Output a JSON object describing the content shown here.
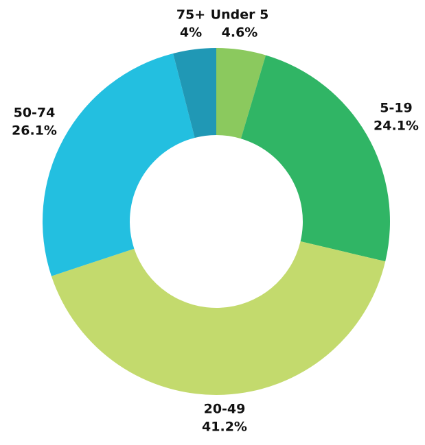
{
  "chart_data": {
    "type": "donut",
    "categories": [
      "Under 5",
      "5-19",
      "20-49",
      "50-74",
      "75+"
    ],
    "values": [
      4.6,
      24.1,
      41.2,
      26.1,
      4
    ],
    "value_labels": [
      "4.6%",
      "24.1%",
      "41.2%",
      "26.1%",
      "4%"
    ],
    "colors": [
      "#8bc95e",
      "#30b565",
      "#c3da6d",
      "#23bfe0",
      "#2098b5"
    ]
  }
}
